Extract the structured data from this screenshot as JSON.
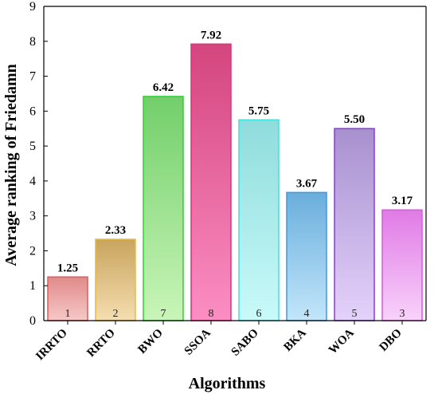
{
  "chart_data": {
    "type": "bar",
    "title": "",
    "xlabel": "Algorithms",
    "ylabel": "Average ranking of Friedamn",
    "ylim": [
      0,
      9
    ],
    "yticks": [
      0,
      1,
      2,
      3,
      4,
      5,
      6,
      7,
      8,
      9
    ],
    "grid": false,
    "legend": "none",
    "categories": [
      "IRRTO",
      "RRTO",
      "BWO",
      "SSOA",
      "SABO",
      "BKA",
      "WOA",
      "DBO"
    ],
    "values": [
      1.25,
      2.33,
      6.42,
      7.92,
      5.75,
      3.67,
      5.5,
      3.17
    ],
    "value_labels": [
      "1.25",
      "2.33",
      "6.42",
      "7.92",
      "5.75",
      "3.67",
      "5.50",
      "3.17"
    ],
    "ranks": [
      "1",
      "2",
      "7",
      "8",
      "6",
      "4",
      "5",
      "3"
    ],
    "colors": [
      {
        "top": "#e08a8a",
        "bottom": "#f6c9c7",
        "edge": "#e05a5a"
      },
      {
        "top": "#c8a45e",
        "bottom": "#f5deb0",
        "edge": "#e8b84a"
      },
      {
        "top": "#72cf6a",
        "bottom": "#c9f5b8",
        "edge": "#2fd12f"
      },
      {
        "top": "#d4457e",
        "bottom": "#fb8ec3",
        "edge": "#e0307a"
      },
      {
        "top": "#8fdcdc",
        "bottom": "#c9fafa",
        "edge": "#3fe0e0"
      },
      {
        "top": "#6aaedc",
        "bottom": "#c2e6fb",
        "edge": "#3a9ae0"
      },
      {
        "top": "#a890cf",
        "bottom": "#e3d2fb",
        "edge": "#8a3ae0"
      },
      {
        "top": "#e07ae6",
        "bottom": "#f9d2fb",
        "edge": "#d65ae0"
      }
    ]
  }
}
